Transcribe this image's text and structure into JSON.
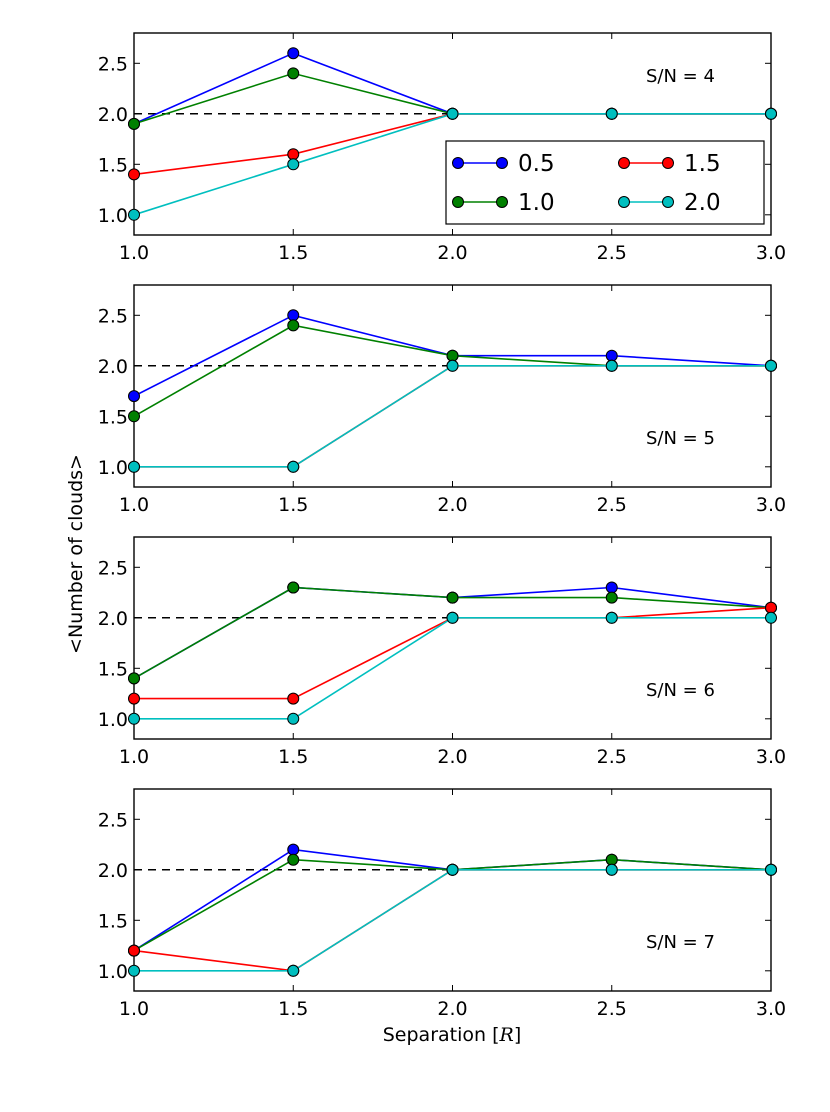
{
  "chart_data": [
    {
      "type": "line",
      "annotation": "S/N = 4",
      "x": [
        1.0,
        1.5,
        2.0,
        2.5,
        3.0
      ],
      "xlim": [
        1.0,
        3.0
      ],
      "ylim": [
        0.8,
        2.8
      ],
      "xticks": [
        "1.0",
        "1.5",
        "2.0",
        "2.5",
        "3.0"
      ],
      "yticks": [
        "1.0",
        "1.5",
        "2.0",
        "2.5"
      ],
      "reference_line": 2.0,
      "series": [
        {
          "name": "0.5",
          "color": "#0000ff",
          "values": [
            1.9,
            2.6,
            2.0,
            2.0,
            2.0
          ]
        },
        {
          "name": "1.0",
          "color": "#008000",
          "values": [
            1.9,
            2.4,
            2.0,
            2.0,
            2.0
          ]
        },
        {
          "name": "1.5",
          "color": "#ff0000",
          "values": [
            1.4,
            1.6,
            2.0,
            2.0,
            2.0
          ]
        },
        {
          "name": "2.0",
          "color": "#00bfbf",
          "values": [
            1.0,
            1.5,
            2.0,
            2.0,
            2.0
          ]
        }
      ],
      "legend": {
        "placement": "right",
        "entries": [
          "0.5",
          "1.5",
          "1.0",
          "2.0"
        ]
      }
    },
    {
      "type": "line",
      "annotation": "S/N = 5",
      "x": [
        1.0,
        1.5,
        2.0,
        2.5,
        3.0
      ],
      "xlim": [
        1.0,
        3.0
      ],
      "ylim": [
        0.8,
        2.8
      ],
      "xticks": [
        "1.0",
        "1.5",
        "2.0",
        "2.5",
        "3.0"
      ],
      "yticks": [
        "1.0",
        "1.5",
        "2.0",
        "2.5"
      ],
      "reference_line": 2.0,
      "series": [
        {
          "name": "0.5",
          "color": "#0000ff",
          "values": [
            1.7,
            2.5,
            2.1,
            2.1,
            2.0
          ]
        },
        {
          "name": "1.0",
          "color": "#008000",
          "values": [
            1.5,
            2.4,
            2.1,
            2.0,
            2.0
          ]
        },
        {
          "name": "1.5",
          "color": "#ff0000",
          "values": [
            1.0,
            1.0,
            2.0,
            2.0,
            2.0
          ]
        },
        {
          "name": "2.0",
          "color": "#00bfbf",
          "values": [
            1.0,
            1.0,
            2.0,
            2.0,
            2.0
          ]
        }
      ]
    },
    {
      "type": "line",
      "annotation": "S/N = 6",
      "x": [
        1.0,
        1.5,
        2.0,
        2.5,
        3.0
      ],
      "xlim": [
        1.0,
        3.0
      ],
      "ylim": [
        0.8,
        2.8
      ],
      "xticks": [
        "1.0",
        "1.5",
        "2.0",
        "2.5",
        "3.0"
      ],
      "yticks": [
        "1.0",
        "1.5",
        "2.0",
        "2.5"
      ],
      "reference_line": 2.0,
      "series": [
        {
          "name": "0.5",
          "color": "#0000ff",
          "values": [
            1.4,
            2.3,
            2.2,
            2.3,
            2.1
          ]
        },
        {
          "name": "1.0",
          "color": "#008000",
          "values": [
            1.4,
            2.3,
            2.2,
            2.2,
            2.1
          ]
        },
        {
          "name": "1.5",
          "color": "#ff0000",
          "values": [
            1.2,
            1.2,
            2.0,
            2.0,
            2.1
          ]
        },
        {
          "name": "2.0",
          "color": "#00bfbf",
          "values": [
            1.0,
            1.0,
            2.0,
            2.0,
            2.0
          ]
        }
      ]
    },
    {
      "type": "line",
      "annotation": "S/N = 7",
      "x": [
        1.0,
        1.5,
        2.0,
        2.5,
        3.0
      ],
      "xlim": [
        1.0,
        3.0
      ],
      "ylim": [
        0.8,
        2.8
      ],
      "xticks": [
        "1.0",
        "1.5",
        "2.0",
        "2.5",
        "3.0"
      ],
      "yticks": [
        "1.0",
        "1.5",
        "2.0",
        "2.5"
      ],
      "reference_line": 2.0,
      "series": [
        {
          "name": "0.5",
          "color": "#0000ff",
          "values": [
            1.2,
            2.2,
            2.0,
            2.1,
            2.0
          ]
        },
        {
          "name": "1.0",
          "color": "#008000",
          "values": [
            1.2,
            2.1,
            2.0,
            2.1,
            2.0
          ]
        },
        {
          "name": "1.5",
          "color": "#ff0000",
          "values": [
            1.2,
            1.0,
            2.0,
            2.0,
            2.0
          ]
        },
        {
          "name": "2.0",
          "color": "#00bfbf",
          "values": [
            1.0,
            1.0,
            2.0,
            2.0,
            2.0
          ]
        }
      ]
    }
  ],
  "ylabel": "<Number of clouds>",
  "xlabel": "Separation [R]"
}
